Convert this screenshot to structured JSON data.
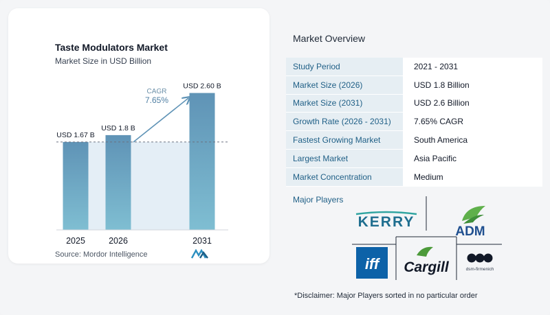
{
  "chart_data": {
    "type": "bar",
    "title": "Taste Modulators Market",
    "subtitle": "Market Size in USD Billion",
    "categories": [
      "2025",
      "2026",
      "2031"
    ],
    "values": [
      1.67,
      1.8,
      2.6
    ],
    "data_labels": [
      "USD 1.67 B",
      "USD 1.8 B",
      "USD 2.60 B"
    ],
    "ylim": [
      0,
      2.75
    ],
    "grid": false,
    "annotation": {
      "label": "CAGR",
      "value": "7.65%"
    },
    "colors": {
      "bar_top": "#5f93b6",
      "bar_bottom": "#7fbed2",
      "band": "#e4eef6"
    }
  },
  "source": "Source:  Mordor Intelligence",
  "overview": {
    "title": "Market Overview",
    "rows": [
      {
        "key": "Study Period",
        "value": "2021 - 2031"
      },
      {
        "key": "Market Size (2026)",
        "value": "USD 1.8 Billion"
      },
      {
        "key": "Market Size (2031)",
        "value": "USD 2.6 Billion"
      },
      {
        "key": "Growth Rate (2026 - 2031)",
        "value": "7.65% CAGR"
      },
      {
        "key": "Fastest Growing Market",
        "value": "South America"
      },
      {
        "key": "Largest Market",
        "value": "Asia Pacific"
      },
      {
        "key": "Market Concentration",
        "value": "Medium"
      }
    ],
    "players_label": "Major Players",
    "players": [
      "KERRY",
      "ADM",
      "iff",
      "Cargill",
      "dsm-firmenich"
    ],
    "disclaimer": "*Disclaimer: Major Players sorted in no particular order"
  }
}
